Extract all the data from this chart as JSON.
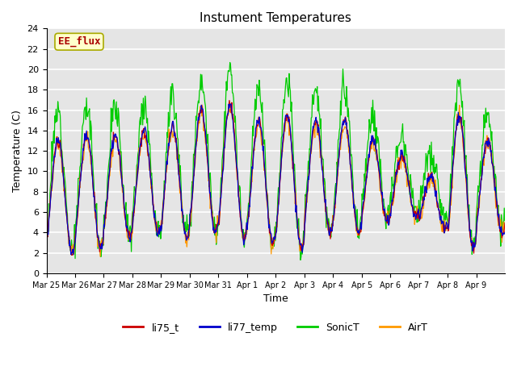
{
  "title": "Instument Temperatures",
  "xlabel": "Time",
  "ylabel": "Temperature (C)",
  "ylim": [
    0,
    24
  ],
  "yticks": [
    0,
    2,
    4,
    6,
    8,
    10,
    12,
    14,
    16,
    18,
    20,
    22,
    24
  ],
  "xtick_labels": [
    "Mar 25",
    "Mar 26",
    "Mar 27",
    "Mar 28",
    "Mar 29",
    "Mar 30",
    "Mar 31",
    "Apr 1",
    "Apr 2",
    "Apr 3",
    "Apr 4",
    "Apr 5",
    "Apr 6",
    "Apr 7",
    "Apr 8",
    "Apr 9"
  ],
  "colors": {
    "li75_t": "#cc0000",
    "li77_temp": "#0000cc",
    "SonicT": "#00cc00",
    "AirT": "#ff9900"
  },
  "n_days": 16,
  "bg_color": "#e5e5e5",
  "annotation_text": "EE_flux",
  "annotation_color": "#aa0000",
  "annotation_bg": "#ffffcc",
  "annotation_edge": "#aaaa00"
}
